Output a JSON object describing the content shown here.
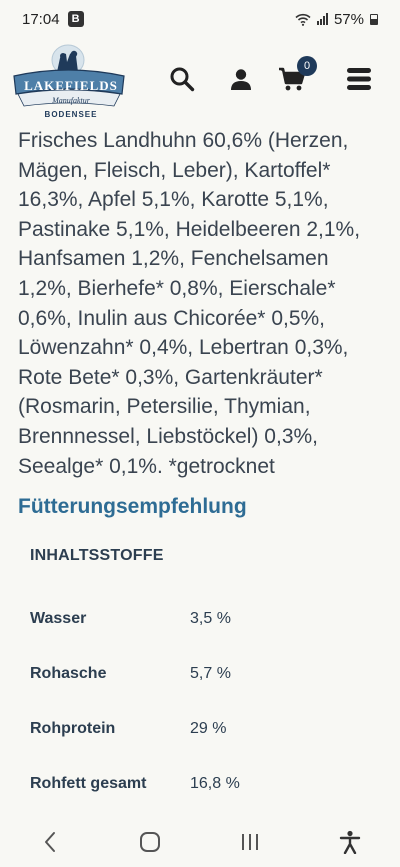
{
  "status": {
    "time": "17:04",
    "app_badge": "B",
    "battery": "57%"
  },
  "header": {
    "logo_text": "LAKEFIELDS",
    "logo_subtitle": "Manufaktur",
    "logo_location": "BODENSEE",
    "cart_count": "0"
  },
  "ingredients": "Frisches Landhuhn 60,6% (Herzen, Mägen, Fleisch, Leber), Kartoffel* 16,3%, Apfel 5,1%, Karotte 5,1%, Pastinake 5,1%, Heidelbeeren 2,1%, Hanfsamen 1,2%, Fenchelsamen 1,2%, Bierhefe* 0,8%, Eierschale* 0,6%, Inulin aus Chicorée* 0,5%, Löwenzahn* 0,4%, Lebertran 0,3%, Rote Bete* 0,3%, Gartenkräuter* (Rosmarin, Petersilie, Thymian, Brennnessel, Liebstöckel) 0,3%, Seealge* 0,1%. *getrocknet",
  "feeding_link": "Fütterungsempfehlung",
  "nutrients": {
    "heading": "INHALTSSTOFFE",
    "rows": [
      {
        "name": "Wasser",
        "value": "3,5 %"
      },
      {
        "name": "Rohasche",
        "value": "5,7 %"
      },
      {
        "name": "Rohprotein",
        "value": "29 %"
      },
      {
        "name": "Rohfett gesamt",
        "value": "16,8 %"
      }
    ]
  },
  "icons": {
    "search": "search-icon",
    "account": "user-icon",
    "cart": "cart-icon",
    "menu": "hamburger-menu-icon"
  },
  "colors": {
    "link": "#2e6c94",
    "brand_navy": "#1f3a5a",
    "background": "#f8f8f4"
  }
}
